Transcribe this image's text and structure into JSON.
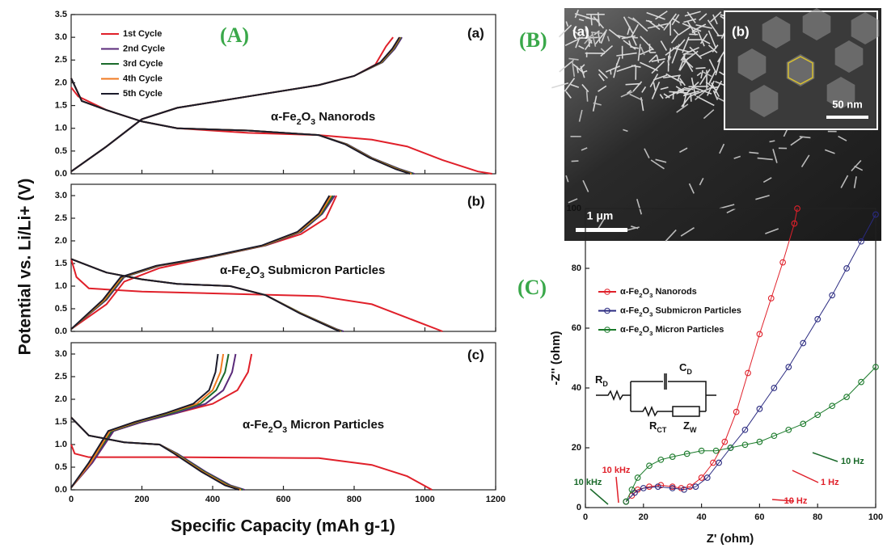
{
  "figure": {
    "panel_A": "(A)",
    "panel_B": "(B)",
    "panel_C": "(C)",
    "x_label": "Specific Capacity (mAh g-1)",
    "y_label": "Potential vs. Li/Li+ (V)",
    "sem": {
      "a": "(a)",
      "b": "(b)",
      "inset_scale": "50 nm",
      "main_scale": "1 μm"
    },
    "circuit": [
      {
        "base": "R",
        "sub": "D"
      },
      {
        "base": "C",
        "sub": "D"
      },
      {
        "base": "R",
        "sub": "CT"
      },
      {
        "base": "Z",
        "sub": "W"
      }
    ]
  },
  "chart_data": [
    {
      "type": "line",
      "title": "(a)",
      "label": "α-Fe2O3 Nanorods",
      "xlim": [
        0,
        1200
      ],
      "xticks": [
        0,
        200,
        400,
        600,
        800,
        1000,
        1200
      ],
      "ylim": [
        0,
        3.5
      ],
      "yticks": [
        {
          "value": 0,
          "label": "0.0"
        },
        {
          "value": 0.5,
          "label": "0.5"
        },
        {
          "value": 1,
          "label": "1.0"
        },
        {
          "value": 1.5,
          "label": "1.5"
        },
        {
          "value": 2,
          "label": "2.0"
        },
        {
          "value": 2.5,
          "label": "2.5"
        },
        {
          "value": 3,
          "label": "3.0"
        },
        {
          "value": 3.5,
          "label": "3.5"
        }
      ],
      "series": [
        {
          "name": "1st Cycle",
          "color": "#e0202a",
          "x": [
            0,
            20,
            100,
            200,
            300,
            500,
            700,
            850,
            950,
            1050,
            1150,
            1190,
            null,
            0,
            100,
            200,
            300,
            500,
            700,
            800,
            860,
            890,
            910
          ],
          "values": [
            1.9,
            1.7,
            1.4,
            1.15,
            1.0,
            0.9,
            0.85,
            0.75,
            0.6,
            0.3,
            0.05,
            0,
            null,
            0.05,
            0.6,
            1.2,
            1.45,
            1.7,
            1.95,
            2.15,
            2.4,
            2.8,
            3.0
          ]
        },
        {
          "name": "2nd Cycle",
          "color": "#5a2a7a",
          "x": [
            0,
            30,
            100,
            200,
            300,
            500,
            700,
            780,
            850,
            930,
            970,
            null,
            0,
            100,
            200,
            300,
            500,
            700,
            800,
            880,
            915,
            935
          ],
          "values": [
            2.1,
            1.6,
            1.4,
            1.15,
            1.0,
            0.95,
            0.85,
            0.65,
            0.35,
            0.1,
            0,
            null,
            0.05,
            0.6,
            1.2,
            1.45,
            1.7,
            1.95,
            2.15,
            2.45,
            2.75,
            3.0
          ]
        },
        {
          "name": "3rd Cycle",
          "color": "#1a6a2a",
          "x": [
            0,
            30,
            100,
            200,
            300,
            500,
            700,
            778,
            848,
            926,
            966,
            null,
            0,
            100,
            200,
            300,
            500,
            700,
            800,
            878,
            912,
            932
          ],
          "values": [
            2.1,
            1.6,
            1.4,
            1.15,
            1.0,
            0.95,
            0.85,
            0.65,
            0.35,
            0.1,
            0,
            null,
            0.05,
            0.6,
            1.2,
            1.45,
            1.7,
            1.95,
            2.15,
            2.45,
            2.75,
            3.0
          ]
        },
        {
          "name": "4th Cycle",
          "color": "#f07a20",
          "x": [
            0,
            30,
            100,
            200,
            300,
            500,
            700,
            776,
            846,
            922,
            962,
            null,
            0,
            100,
            200,
            300,
            500,
            700,
            800,
            876,
            910,
            930
          ],
          "values": [
            2.1,
            1.6,
            1.4,
            1.15,
            1.0,
            0.95,
            0.85,
            0.65,
            0.35,
            0.1,
            0,
            null,
            0.05,
            0.6,
            1.2,
            1.45,
            1.7,
            1.95,
            2.15,
            2.45,
            2.75,
            3.0
          ]
        },
        {
          "name": "5th Cycle",
          "color": "#1a1a2a",
          "x": [
            0,
            30,
            100,
            200,
            300,
            500,
            700,
            774,
            844,
            918,
            958,
            null,
            0,
            100,
            200,
            300,
            500,
            700,
            800,
            874,
            908,
            928
          ],
          "values": [
            2.1,
            1.6,
            1.4,
            1.15,
            1.0,
            0.95,
            0.85,
            0.65,
            0.35,
            0.1,
            0,
            null,
            0.05,
            0.6,
            1.2,
            1.45,
            1.7,
            1.95,
            2.15,
            2.45,
            2.75,
            3.0
          ]
        }
      ]
    },
    {
      "type": "line",
      "title": "(b)",
      "label": "α-Fe2O3 Submicron Particles",
      "xlim": [
        0,
        1200
      ],
      "xticks": [
        0,
        200,
        400,
        600,
        800,
        1000,
        1200
      ],
      "ylim": [
        0,
        3.25
      ],
      "yticks": [
        {
          "value": 0,
          "label": "0.0"
        },
        {
          "value": 0.5,
          "label": "0.5"
        },
        {
          "value": 1,
          "label": "1.0"
        },
        {
          "value": 1.5,
          "label": "1.5"
        },
        {
          "value": 2,
          "label": "2.0"
        },
        {
          "value": 2.5,
          "label": "2.5"
        },
        {
          "value": 3,
          "label": "3.0"
        }
      ],
      "series": [
        {
          "color": "#e0202a",
          "x": [
            0,
            15,
            50,
            200,
            500,
            700,
            850,
            950,
            1050,
            null,
            0,
            100,
            150,
            250,
            400,
            550,
            650,
            720,
            750
          ],
          "values": [
            1.6,
            1.2,
            0.95,
            0.88,
            0.82,
            0.78,
            0.6,
            0.3,
            0,
            null,
            0.05,
            0.6,
            1.1,
            1.4,
            1.65,
            1.9,
            2.15,
            2.5,
            3.0
          ]
        },
        {
          "color": "#5a2a7a",
          "x": [
            0,
            100,
            200,
            300,
            450,
            550,
            650,
            750,
            770,
            null,
            0,
            100,
            150,
            250,
            400,
            550,
            650,
            710,
            745
          ],
          "values": [
            1.6,
            1.3,
            1.15,
            1.05,
            1.0,
            0.8,
            0.4,
            0.05,
            0,
            null,
            0.05,
            0.7,
            1.2,
            1.45,
            1.65,
            1.9,
            2.2,
            2.6,
            3.0
          ]
        },
        {
          "color": "#1a6a2a",
          "x": [
            0,
            100,
            200,
            300,
            450,
            550,
            650,
            748,
            765,
            null,
            0,
            97,
            147,
            247,
            397,
            547,
            647,
            707,
            740
          ],
          "values": [
            1.6,
            1.3,
            1.15,
            1.05,
            1.0,
            0.8,
            0.4,
            0.05,
            0,
            null,
            0.05,
            0.7,
            1.2,
            1.45,
            1.65,
            1.9,
            2.2,
            2.6,
            3.0
          ]
        },
        {
          "color": "#f07a20",
          "x": [
            0,
            100,
            200,
            300,
            450,
            550,
            648,
            746,
            762,
            null,
            0,
            94,
            144,
            244,
            394,
            544,
            644,
            704,
            735
          ],
          "values": [
            1.6,
            1.3,
            1.15,
            1.05,
            1.0,
            0.8,
            0.4,
            0.05,
            0,
            null,
            0.05,
            0.7,
            1.2,
            1.45,
            1.65,
            1.9,
            2.2,
            2.6,
            3.0
          ]
        },
        {
          "color": "#1a1a2a",
          "x": [
            0,
            100,
            200,
            300,
            450,
            550,
            646,
            744,
            760,
            null,
            0,
            90,
            140,
            240,
            390,
            540,
            640,
            700,
            730
          ],
          "values": [
            1.6,
            1.3,
            1.15,
            1.05,
            1.0,
            0.8,
            0.4,
            0.05,
            0,
            null,
            0.05,
            0.7,
            1.2,
            1.45,
            1.65,
            1.9,
            2.2,
            2.6,
            3.0
          ]
        }
      ]
    },
    {
      "type": "line",
      "title": "(c)",
      "label": "α-Fe2O3 Micron Particles",
      "xlim": [
        0,
        1200
      ],
      "xticks": [
        0,
        200,
        400,
        600,
        800,
        1000,
        1200
      ],
      "ylim": [
        0,
        3.25
      ],
      "yticks": [
        {
          "value": 0,
          "label": "0.0"
        },
        {
          "value": 0.5,
          "label": "0.5"
        },
        {
          "value": 1,
          "label": "1.0"
        },
        {
          "value": 1.5,
          "label": "1.5"
        },
        {
          "value": 2,
          "label": "2.0"
        },
        {
          "value": 2.5,
          "label": "2.5"
        },
        {
          "value": 3,
          "label": "3.0"
        }
      ],
      "series": [
        {
          "color": "#e0202a",
          "x": [
            0,
            10,
            50,
            300,
            700,
            850,
            950,
            1020,
            null,
            0,
            60,
            120,
            200,
            300,
            400,
            470,
            500,
            510
          ],
          "values": [
            1.0,
            0.8,
            0.72,
            0.72,
            0.7,
            0.55,
            0.3,
            0,
            null,
            0.05,
            0.6,
            1.3,
            1.5,
            1.7,
            1.9,
            2.2,
            2.6,
            3.0
          ]
        },
        {
          "color": "#5a2a7a",
          "x": [
            0,
            50,
            150,
            250,
            300,
            380,
            450,
            490,
            null,
            0,
            60,
            120,
            200,
            300,
            380,
            430,
            455,
            465
          ],
          "values": [
            1.6,
            1.2,
            1.05,
            1.0,
            0.8,
            0.4,
            0.1,
            0,
            null,
            0.05,
            0.6,
            1.3,
            1.5,
            1.7,
            1.9,
            2.2,
            2.6,
            3.0
          ]
        },
        {
          "color": "#1a6a2a",
          "x": [
            0,
            50,
            150,
            250,
            297,
            376,
            445,
            485,
            null,
            0,
            55,
            115,
            190,
            285,
            365,
            410,
            435,
            445
          ],
          "values": [
            1.6,
            1.2,
            1.05,
            1.0,
            0.8,
            0.4,
            0.1,
            0,
            null,
            0.05,
            0.6,
            1.3,
            1.5,
            1.7,
            1.9,
            2.2,
            2.6,
            3.0
          ]
        },
        {
          "color": "#f07a20",
          "x": [
            0,
            50,
            150,
            250,
            294,
            372,
            440,
            480,
            null,
            0,
            55,
            110,
            185,
            275,
            355,
            400,
            422,
            430
          ],
          "values": [
            1.6,
            1.2,
            1.05,
            1.0,
            0.8,
            0.4,
            0.1,
            0,
            null,
            0.05,
            0.6,
            1.3,
            1.5,
            1.7,
            1.9,
            2.2,
            2.6,
            3.0
          ]
        },
        {
          "color": "#1a1a2a",
          "x": [
            0,
            50,
            150,
            250,
            291,
            368,
            435,
            475,
            null,
            0,
            50,
            105,
            180,
            270,
            345,
            390,
            408,
            415
          ],
          "values": [
            1.6,
            1.2,
            1.05,
            1.0,
            0.8,
            0.4,
            0.1,
            0,
            null,
            0.05,
            0.6,
            1.3,
            1.5,
            1.7,
            1.9,
            2.2,
            2.6,
            3.0
          ]
        }
      ]
    },
    {
      "type": "scatter",
      "x_label": "Z' (ohm)",
      "y_label": "-Z'' (ohm)",
      "xlim": [
        0,
        100
      ],
      "xticks": [
        0,
        20,
        40,
        60,
        80,
        100
      ],
      "ylim": [
        0,
        100
      ],
      "yticks": [
        0,
        20,
        40,
        60,
        80,
        100
      ],
      "annotations": [
        {
          "text": "10 kHz",
          "color": "#e0202a"
        },
        {
          "text": "10 kHz",
          "color": "#1a6a2a"
        },
        {
          "text": "1 Hz",
          "color": "#e0202a"
        },
        {
          "text": "10 Hz",
          "color": "#e0202a"
        },
        {
          "text": "10 Hz",
          "color": "#1a6a2a"
        }
      ],
      "series": [
        {
          "name": "α-Fe2O3 Nanorods",
          "color": "#e0202a",
          "x": [
            14,
            16,
            18,
            22,
            26,
            30,
            33,
            36,
            40,
            44,
            48,
            52,
            56,
            60,
            64,
            68,
            72,
            73
          ],
          "values": [
            2,
            4,
            6,
            7,
            7.5,
            7,
            6.5,
            7,
            10,
            15,
            22,
            32,
            45,
            58,
            70,
            82,
            95,
            100
          ]
        },
        {
          "name": "α-Fe2O3 Submicron Particles",
          "color": "#2a2a80",
          "x": [
            14,
            17,
            20,
            25,
            30,
            34,
            38,
            42,
            46,
            50,
            55,
            60,
            65,
            70,
            75,
            80,
            85,
            90,
            95,
            100
          ],
          "values": [
            2,
            5,
            6.5,
            7,
            6.5,
            6,
            7,
            10,
            15,
            20,
            26,
            33,
            40,
            47,
            55,
            63,
            71,
            80,
            89,
            98
          ]
        },
        {
          "name": "α-Fe2O3 Micron Particles",
          "color": "#1a7a2a",
          "x": [
            14,
            16,
            18,
            22,
            26,
            30,
            35,
            40,
            45,
            50,
            55,
            60,
            65,
            70,
            75,
            80,
            85,
            90,
            95,
            100
          ],
          "values": [
            2,
            6,
            10,
            14,
            16,
            17,
            18,
            19,
            19,
            20,
            21,
            22,
            24,
            26,
            28,
            31,
            34,
            37,
            42,
            47
          ]
        }
      ]
    }
  ]
}
